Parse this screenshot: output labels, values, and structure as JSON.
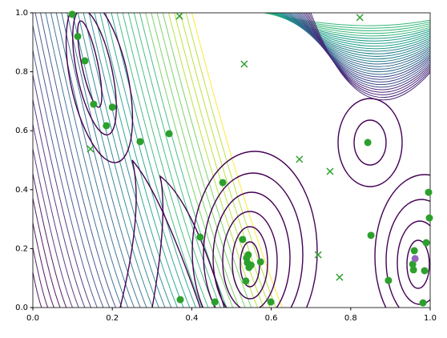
{
  "chart_data": {
    "type": "scatter",
    "xlim": [
      0,
      1
    ],
    "ylim": [
      0,
      1
    ],
    "xticks": [
      {
        "value": 0,
        "label": "0.0"
      },
      0.2,
      0.4,
      0.6,
      0.8,
      {
        "value": 1,
        "label": "1.0"
      }
    ],
    "yticks": [
      {
        "value": 0,
        "label": "0.0"
      },
      0.2,
      0.4,
      0.6,
      0.8,
      {
        "value": 1,
        "label": "1.0"
      }
    ],
    "series": [
      {
        "marker": "o",
        "color": "#2ca02c",
        "x": [
          0.099,
          0.113,
          0.131,
          0.153,
          0.2,
          0.185,
          0.27,
          0.343,
          0.478,
          0.421,
          0.371,
          0.458,
          0.528,
          0.538,
          0.542,
          0.54,
          0.544,
          0.549,
          0.573,
          0.536,
          0.599,
          0.843,
          0.851,
          0.895,
          0.996,
          0.998,
          0.96,
          0.99,
          0.956,
          0.958,
          0.986,
          0.982
        ],
        "y": [
          0.995,
          0.92,
          0.837,
          0.69,
          0.68,
          0.617,
          0.563,
          0.59,
          0.424,
          0.239,
          0.027,
          0.019,
          0.231,
          0.168,
          0.179,
          0.152,
          0.136,
          0.144,
          0.155,
          0.09,
          0.019,
          0.56,
          0.245,
          0.092,
          0.391,
          0.304,
          0.193,
          0.22,
          0.147,
          0.128,
          0.125,
          0.016
        ]
      },
      {
        "marker": "x",
        "color": "#2ca02c",
        "x": [
          0.145,
          0.369,
          0.532,
          0.671,
          0.748,
          0.718,
          0.772,
          0.823
        ],
        "y": [
          0.538,
          0.989,
          0.826,
          0.503,
          0.462,
          0.179,
          0.103,
          0.984
        ]
      },
      {
        "marker": "o",
        "color": "#9467bd",
        "x": [
          0.962
        ],
        "y": [
          0.166
        ]
      }
    ]
  }
}
